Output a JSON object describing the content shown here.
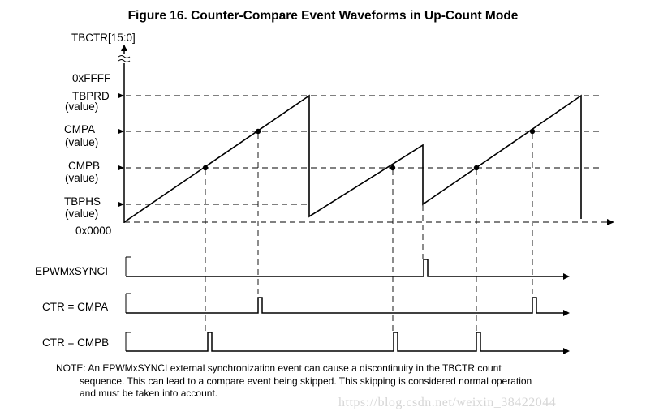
{
  "title": "Figure 16. Counter-Compare Event Waveforms in Up-Count Mode",
  "y_axis_label": "TBCTR[15:0]",
  "levels": {
    "top": "0xFFFF",
    "tbprd": [
      "TBPRD",
      "(value)"
    ],
    "cmpa": [
      "CMPA",
      "(value)"
    ],
    "cmpb": [
      "CMPB",
      "(value)"
    ],
    "tbphs": [
      "TBPHS",
      "(value)"
    ],
    "zero": "0x0000"
  },
  "signals": {
    "sync": "EPWMxSYNCI",
    "ctr_cmpa": "CTR = CMPA",
    "ctr_cmpb": "CTR = CMPB"
  },
  "note": {
    "line1": "NOTE: An EPWMxSYNCI external synchronization event can cause a discontinuity in the TBCTR count",
    "line2": "sequence. This can lead to a compare event being skipped. This skipping is considered normal operation",
    "line3": "and must be taken into account."
  },
  "watermark": "https://blog.csdn.net/weixin_38422044"
}
